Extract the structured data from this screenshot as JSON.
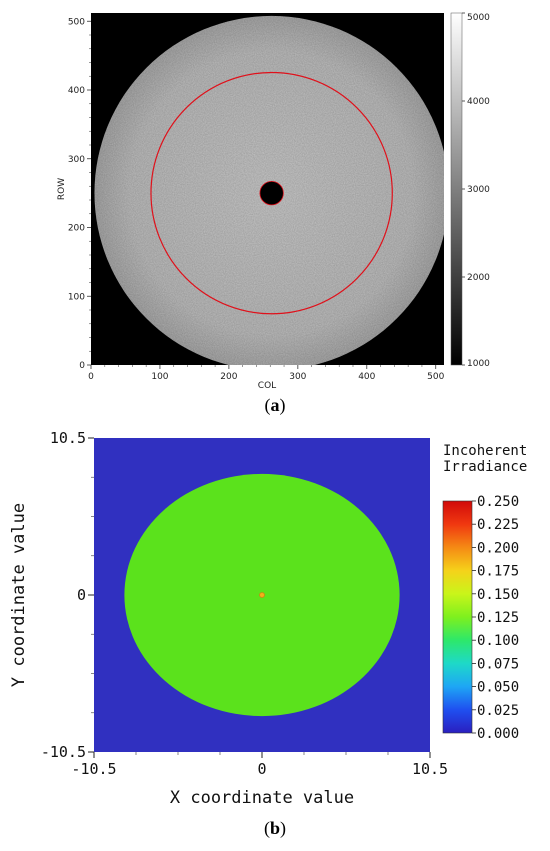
{
  "chart_data": [
    {
      "type": "heatmap",
      "caption": "(a)",
      "caption_letter": "a",
      "xlabel": "COL",
      "ylabel": "ROW",
      "xlim": [
        0,
        512
      ],
      "ylim": [
        0,
        512
      ],
      "x_ticks": [
        0,
        100,
        200,
        300,
        400,
        500
      ],
      "y_ticks": [
        0,
        100,
        200,
        300,
        400,
        500
      ],
      "colorbar": {
        "min": 1000,
        "max": 5000,
        "ticks": [
          1000,
          2000,
          3000,
          4000,
          5000
        ],
        "colormap": "grayscale"
      },
      "disk": {
        "center": [
          262,
          250
        ],
        "radius": 257,
        "value": 3700
      },
      "obscuration": {
        "center": [
          262,
          250
        ],
        "radius": 17,
        "value": 0
      },
      "annulus_circle": {
        "center": [
          262,
          250
        ],
        "radius": 175,
        "color": "#e0101a"
      },
      "background_value": 0
    },
    {
      "type": "heatmap",
      "caption": "(b)",
      "caption_letter": "b",
      "xlabel": "X coordinate value",
      "ylabel": "Y coordinate value",
      "xlim": [
        -10.5,
        10.5
      ],
      "ylim": [
        -10.5,
        10.5
      ],
      "x_tick_labels": [
        "-10.5",
        "0",
        "10.5"
      ],
      "y_tick_labels": [
        "10.5",
        "0",
        "-10.5"
      ],
      "colorbar_title": [
        "Incoherent",
        "Irradiance"
      ],
      "colorbar": {
        "min": 0.0,
        "max": 0.25,
        "tick_labels": [
          "0.250",
          "0.225",
          "0.200",
          "0.175",
          "0.150",
          "0.125",
          "0.100",
          "0.075",
          "0.050",
          "0.025",
          "0.000"
        ],
        "colormap": "jet"
      },
      "disk": {
        "center": [
          0,
          0
        ],
        "rx": 8.6,
        "ry": 8.1,
        "value": 0.11
      },
      "center_spot": {
        "center": [
          0,
          0
        ],
        "radius": 0.15,
        "value": 0.2
      },
      "background_value": 0.0
    }
  ]
}
